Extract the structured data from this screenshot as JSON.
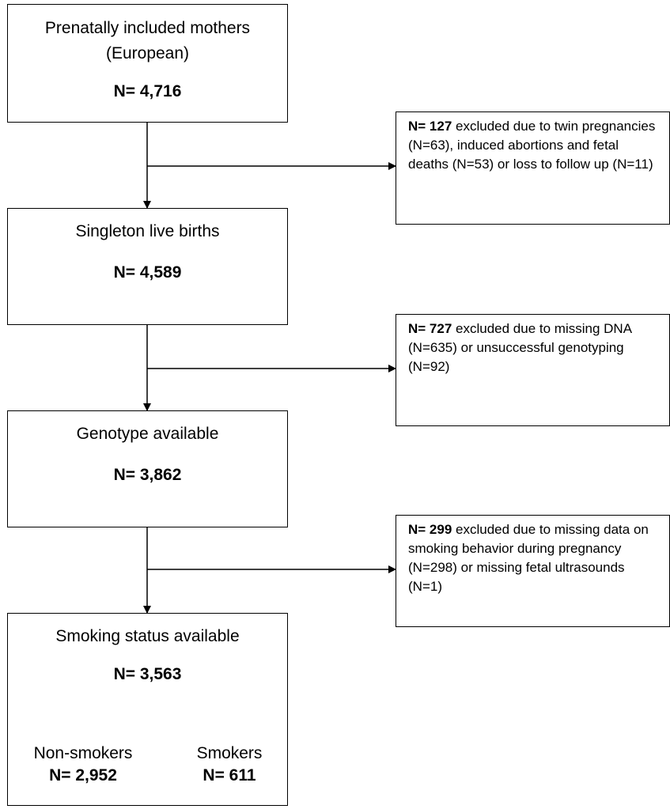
{
  "boxes": {
    "prenatal": {
      "title_line1": "Prenatally included mothers",
      "title_line2": "(European)",
      "n": "N= 4,716"
    },
    "singleton": {
      "title": "Singleton live births",
      "n": "N= 4,589"
    },
    "genotype": {
      "title": "Genotype available",
      "n": "N= 3,862"
    },
    "smoking": {
      "title": "Smoking status available",
      "n": "N= 3,563"
    }
  },
  "exclusions": {
    "twin": {
      "n": "N= 127",
      "text": "excluded due to twin pregnancies (N=63), induced abortions and fetal deaths (N=53) or loss to follow up (N=11)"
    },
    "dna": {
      "n": "N= 727",
      "text": "excluded due to missing DNA (N=635) or unsuccessful genotyping (N=92)"
    },
    "smoking_missing": {
      "n": "N= 299",
      "text": "excluded due to missing data on smoking behavior during pregnancy (N=298) or missing fetal ultrasounds (N=1)"
    }
  },
  "groups": {
    "non_smokers": {
      "label": "Non-smokers",
      "n": "N= 2,952"
    },
    "smokers": {
      "label": "Smokers",
      "n": "N= 611"
    }
  }
}
